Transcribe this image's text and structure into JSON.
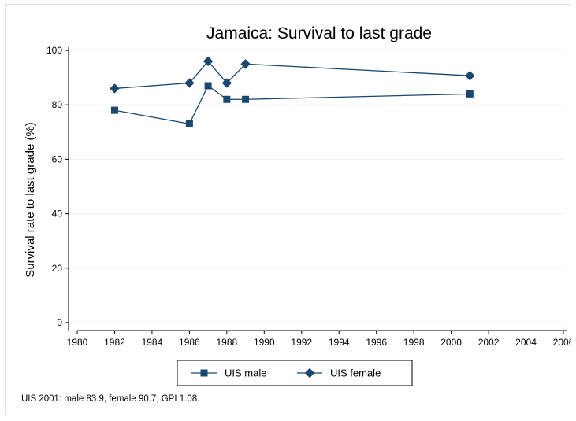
{
  "chart_data": {
    "type": "line",
    "title": "Jamaica: Survival to last grade",
    "xlabel": "",
    "ylabel": "Survival rate to last grade (%)",
    "xlim": [
      1980,
      2006
    ],
    "ylim": [
      0,
      100
    ],
    "xticks": [
      1980,
      1982,
      1984,
      1986,
      1988,
      1990,
      1992,
      1994,
      1996,
      1998,
      2000,
      2002,
      2004,
      2006
    ],
    "yticks": [
      0,
      20,
      40,
      60,
      80,
      100
    ],
    "grid": true,
    "legend_position": "bottom",
    "series": [
      {
        "name": "UIS male",
        "marker": "square",
        "color": "#1a476f",
        "x": [
          1982,
          1986,
          1987,
          1988,
          1989,
          2001
        ],
        "y": [
          78,
          73,
          87,
          82,
          82,
          84
        ]
      },
      {
        "name": "UIS female",
        "marker": "diamond",
        "color": "#1a476f",
        "x": [
          1982,
          1986,
          1987,
          1988,
          1989,
          2001
        ],
        "y": [
          86,
          88,
          96,
          88,
          95,
          90.7
        ]
      }
    ],
    "note": "UIS 2001: male 83.9, female 90.7, GPI 1.08."
  }
}
